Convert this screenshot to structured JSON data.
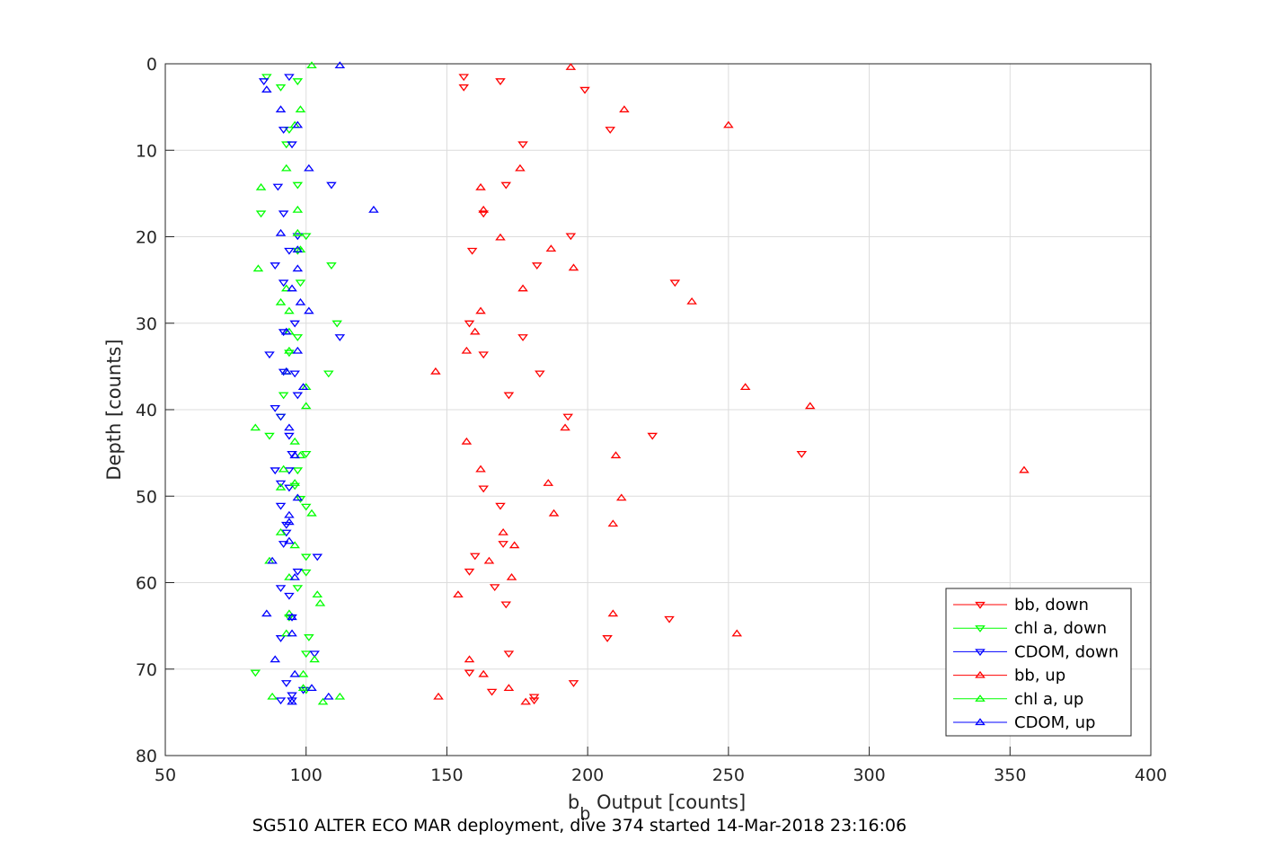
{
  "chart_data": {
    "type": "scatter",
    "xlabel_main": "b",
    "xlabel_sub": "b",
    "xlabel_rest": " Output [counts]",
    "ylabel": "Depth [counts]",
    "caption": "SG510 ALTER ECO MAR deployment, dive 374 started 14-Mar-2018 23:16:06",
    "xlim": [
      50,
      400
    ],
    "ylim": [
      0,
      80
    ],
    "y_reversed": true,
    "grid": true,
    "legend_position": "bottom-right",
    "xticks": [
      "50",
      "100",
      "150",
      "200",
      "250",
      "300",
      "350",
      "400"
    ],
    "yticks": [
      "0",
      "10",
      "20",
      "30",
      "40",
      "50",
      "60",
      "70",
      "80"
    ],
    "series": [
      {
        "name": "bb, down",
        "color": "#ff0000",
        "marker": "triangle-down",
        "points": [
          [
            156,
            1.5
          ],
          [
            169,
            2
          ],
          [
            156,
            2.7
          ],
          [
            199,
            3
          ],
          [
            208,
            7.6
          ],
          [
            177,
            9.3
          ],
          [
            171,
            14
          ],
          [
            163,
            17.3
          ],
          [
            194,
            19.9
          ],
          [
            159,
            21.6
          ],
          [
            182,
            23.3
          ],
          [
            231,
            25.3
          ],
          [
            158,
            30
          ],
          [
            177,
            31.6
          ],
          [
            163,
            33.6
          ],
          [
            183,
            35.8
          ],
          [
            172,
            38.3
          ],
          [
            193,
            40.8
          ],
          [
            223,
            43
          ],
          [
            276,
            45.1
          ],
          [
            163,
            49.1
          ],
          [
            169,
            51.1
          ],
          [
            170,
            55.5
          ],
          [
            160,
            56.9
          ],
          [
            158,
            58.7
          ],
          [
            167,
            60.5
          ],
          [
            171,
            62.5
          ],
          [
            229,
            64.2
          ],
          [
            207,
            66.4
          ],
          [
            172,
            68.2
          ],
          [
            158,
            70.4
          ],
          [
            195,
            71.6
          ],
          [
            166,
            72.6
          ],
          [
            181,
            73.2
          ],
          [
            181,
            73.6
          ]
        ]
      },
      {
        "name": "chl a, down",
        "color": "#00ff00",
        "marker": "triangle-down",
        "points": [
          [
            86,
            1.5
          ],
          [
            97,
            2
          ],
          [
            91,
            2.7
          ],
          [
            94,
            7.6
          ],
          [
            93,
            9.3
          ],
          [
            97,
            14
          ],
          [
            84,
            17.3
          ],
          [
            100,
            19.9
          ],
          [
            97,
            21.6
          ],
          [
            109,
            23.3
          ],
          [
            98,
            25.3
          ],
          [
            111,
            30
          ],
          [
            97,
            31.6
          ],
          [
            94,
            33.4
          ],
          [
            108,
            35.8
          ],
          [
            92,
            38.3
          ],
          [
            91,
            40.8
          ],
          [
            87,
            43
          ],
          [
            100,
            45.1
          ],
          [
            97,
            47
          ],
          [
            96,
            48.8
          ],
          [
            98,
            50.3
          ],
          [
            100,
            51.2
          ],
          [
            100,
            57
          ],
          [
            100,
            58.8
          ],
          [
            97,
            60.6
          ],
          [
            94,
            64
          ],
          [
            101,
            66.3
          ],
          [
            100,
            68.2
          ],
          [
            82,
            70.4
          ],
          [
            100,
            72.4
          ]
        ]
      },
      {
        "name": "CDOM, down",
        "color": "#0000ff",
        "marker": "triangle-down",
        "points": [
          [
            94,
            1.5
          ],
          [
            85,
            2
          ],
          [
            92,
            7.6
          ],
          [
            95,
            9.3
          ],
          [
            109,
            14
          ],
          [
            90,
            14.2
          ],
          [
            92,
            17.3
          ],
          [
            97,
            19.9
          ],
          [
            94,
            21.6
          ],
          [
            89,
            23.3
          ],
          [
            92,
            25.3
          ],
          [
            96,
            30
          ],
          [
            92,
            31
          ],
          [
            112,
            31.6
          ],
          [
            87,
            33.6
          ],
          [
            92,
            35.6
          ],
          [
            96,
            35.8
          ],
          [
            97,
            38.3
          ],
          [
            89,
            39.8
          ],
          [
            91,
            40.8
          ],
          [
            94,
            43
          ],
          [
            95,
            45.1
          ],
          [
            89,
            47
          ],
          [
            94,
            47
          ],
          [
            91,
            48.5
          ],
          [
            94,
            49
          ],
          [
            91,
            51.1
          ],
          [
            93,
            53.3
          ],
          [
            93,
            54.2
          ],
          [
            92,
            55.5
          ],
          [
            104,
            57
          ],
          [
            97,
            58.7
          ],
          [
            91,
            60.6
          ],
          [
            94,
            61.5
          ],
          [
            95,
            64
          ],
          [
            91,
            66.4
          ],
          [
            103,
            68.2
          ],
          [
            93,
            71.6
          ],
          [
            99,
            72.4
          ],
          [
            95,
            73
          ],
          [
            91,
            73.6
          ],
          [
            95,
            73.6
          ]
        ]
      },
      {
        "name": "bb, up",
        "color": "#ff0000",
        "marker": "triangle-up",
        "points": [
          [
            194,
            0.4
          ],
          [
            213,
            5.3
          ],
          [
            250,
            7.1
          ],
          [
            176,
            12.1
          ],
          [
            162,
            14.3
          ],
          [
            163,
            16.9
          ],
          [
            169,
            20.1
          ],
          [
            187,
            21.4
          ],
          [
            195,
            23.6
          ],
          [
            177,
            26
          ],
          [
            237,
            27.5
          ],
          [
            162,
            28.6
          ],
          [
            160,
            31
          ],
          [
            157,
            33.2
          ],
          [
            146,
            35.6
          ],
          [
            256,
            37.4
          ],
          [
            279,
            39.6
          ],
          [
            192,
            42.1
          ],
          [
            157,
            43.7
          ],
          [
            210,
            45.3
          ],
          [
            162,
            46.9
          ],
          [
            355,
            47
          ],
          [
            186,
            48.5
          ],
          [
            212,
            50.2
          ],
          [
            188,
            52
          ],
          [
            209,
            53.2
          ],
          [
            170,
            54.2
          ],
          [
            174,
            55.7
          ],
          [
            165,
            57.5
          ],
          [
            173,
            59.4
          ],
          [
            154,
            61.4
          ],
          [
            209,
            63.6
          ],
          [
            253,
            65.9
          ],
          [
            158,
            68.9
          ],
          [
            163,
            70.6
          ],
          [
            172,
            72.2
          ],
          [
            147,
            73.2
          ],
          [
            178,
            73.8
          ]
        ]
      },
      {
        "name": "chl a, up",
        "color": "#00ff00",
        "marker": "triangle-up",
        "points": [
          [
            102,
            0.2
          ],
          [
            98,
            5.3
          ],
          [
            96,
            7.1
          ],
          [
            93,
            12.1
          ],
          [
            84,
            14.3
          ],
          [
            97,
            16.9
          ],
          [
            97,
            19.6
          ],
          [
            98,
            21.5
          ],
          [
            83,
            23.7
          ],
          [
            93,
            26
          ],
          [
            91,
            27.6
          ],
          [
            94,
            28.6
          ],
          [
            94,
            31
          ],
          [
            94,
            33.2
          ],
          [
            93,
            35.6
          ],
          [
            100,
            37.4
          ],
          [
            100,
            39.6
          ],
          [
            82,
            42.1
          ],
          [
            96,
            43.7
          ],
          [
            98,
            45.3
          ],
          [
            92,
            46.9
          ],
          [
            96,
            48.5
          ],
          [
            91,
            49
          ],
          [
            102,
            52
          ],
          [
            91,
            54.2
          ],
          [
            96,
            55.7
          ],
          [
            87,
            57.5
          ],
          [
            94,
            59.4
          ],
          [
            104,
            61.4
          ],
          [
            105,
            62.4
          ],
          [
            94,
            63.6
          ],
          [
            93,
            65.9
          ],
          [
            103,
            68.9
          ],
          [
            99,
            70.6
          ],
          [
            99,
            72.2
          ],
          [
            88,
            73.2
          ],
          [
            112,
            73.2
          ],
          [
            106,
            73.8
          ]
        ]
      },
      {
        "name": "CDOM, up",
        "color": "#0000ff",
        "marker": "triangle-up",
        "points": [
          [
            112,
            0.2
          ],
          [
            86,
            3
          ],
          [
            91,
            5.3
          ],
          [
            97,
            7.1
          ],
          [
            101,
            12.1
          ],
          [
            124,
            16.9
          ],
          [
            91,
            19.6
          ],
          [
            97,
            21.5
          ],
          [
            97,
            23.7
          ],
          [
            95,
            26
          ],
          [
            98,
            27.6
          ],
          [
            101,
            28.6
          ],
          [
            93,
            31
          ],
          [
            97,
            33.2
          ],
          [
            93,
            35.6
          ],
          [
            99,
            37.4
          ],
          [
            94,
            42.1
          ],
          [
            96,
            45.3
          ],
          [
            97,
            50.2
          ],
          [
            94,
            52.2
          ],
          [
            94,
            53
          ],
          [
            94,
            55.2
          ],
          [
            88,
            57.5
          ],
          [
            96,
            59.4
          ],
          [
            86,
            63.6
          ],
          [
            95,
            64
          ],
          [
            95,
            65.9
          ],
          [
            89,
            68.9
          ],
          [
            96,
            70.6
          ],
          [
            102,
            72.2
          ],
          [
            108,
            73.2
          ],
          [
            95,
            73.8
          ]
        ]
      }
    ]
  }
}
